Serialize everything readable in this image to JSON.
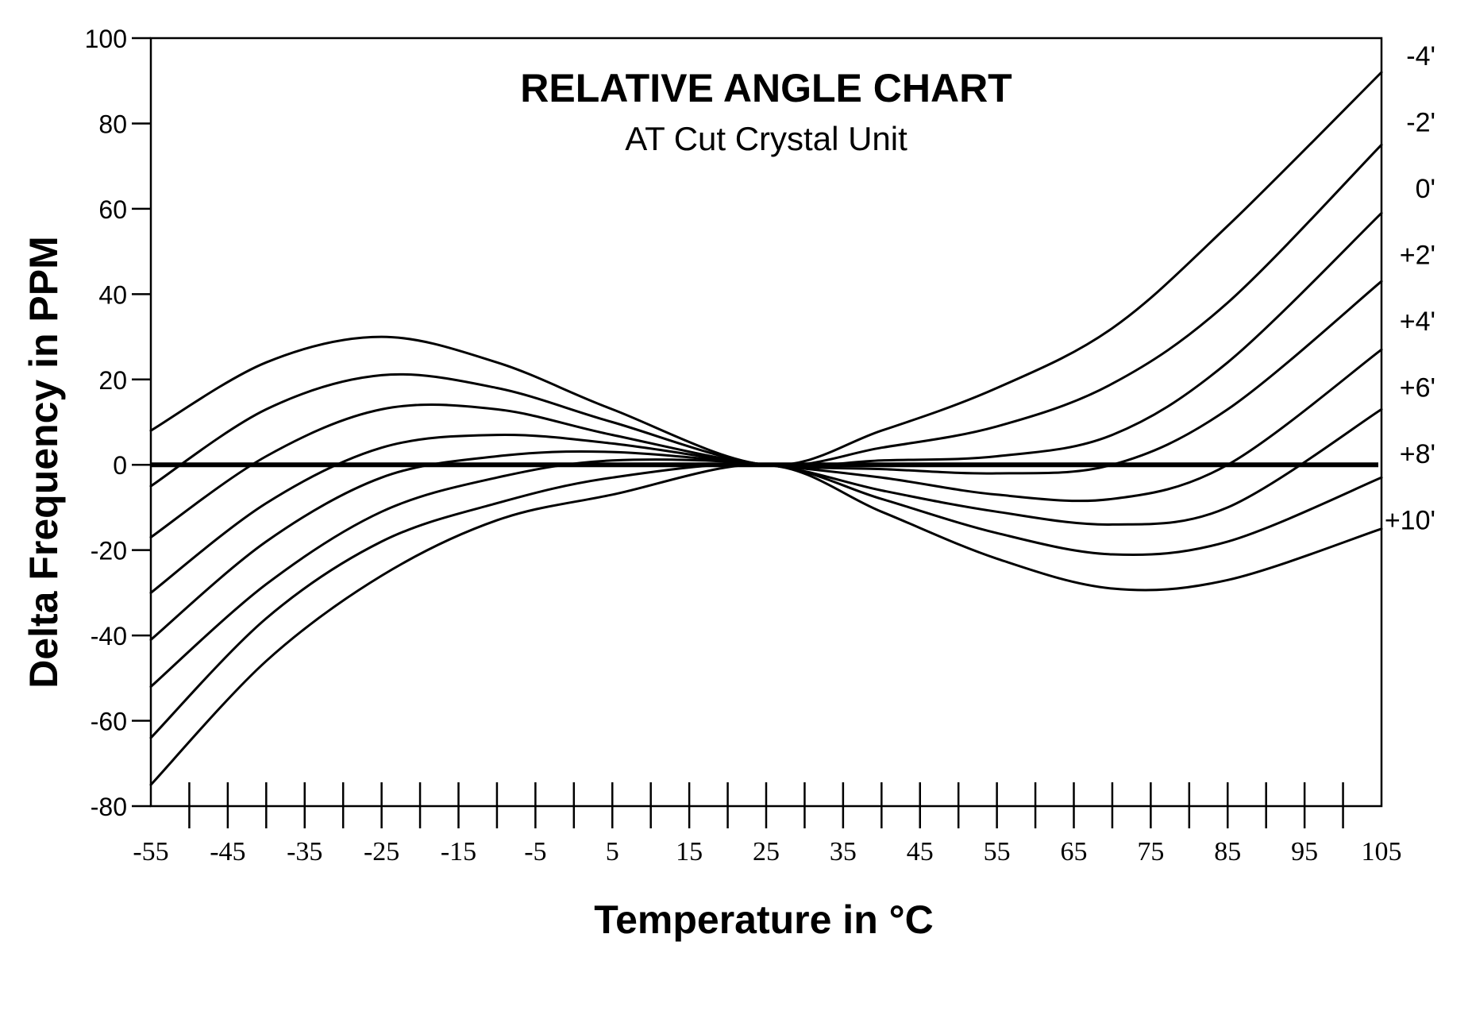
{
  "chart_data": {
    "type": "line",
    "title": "RELATIVE ANGLE CHART",
    "subtitle": "AT Cut Crystal Unit",
    "xlabel": "Temperature in °C",
    "ylabel": "Delta Frequency in PPM",
    "xlim": [
      -55,
      105
    ],
    "ylim": [
      -80,
      100
    ],
    "x_ticks": [
      -55,
      -45,
      -35,
      -25,
      -15,
      -5,
      5,
      15,
      25,
      35,
      45,
      55,
      65,
      75,
      85,
      95,
      105
    ],
    "x_minor_ticks": [
      -50,
      -40,
      -30,
      -20,
      -10,
      0,
      10,
      20,
      30,
      40,
      50,
      60,
      70,
      80,
      90,
      100
    ],
    "y_ticks": [
      100,
      80,
      60,
      40,
      20,
      0,
      -20,
      -40,
      -60,
      -80
    ],
    "grid": false,
    "reference_line": 0,
    "series": [
      {
        "name": "-4'",
        "x": [
          -55,
          -40,
          -25,
          -10,
          5,
          25,
          40,
          55,
          70,
          85,
          105
        ],
        "values": [
          8,
          24,
          30,
          24,
          13,
          0,
          8,
          18,
          32,
          56,
          92
        ]
      },
      {
        "name": "-2'",
        "x": [
          -55,
          -40,
          -25,
          -10,
          5,
          25,
          40,
          55,
          70,
          85,
          105
        ],
        "values": [
          -5,
          13,
          21,
          18,
          10,
          0,
          4,
          9,
          19,
          38,
          75
        ]
      },
      {
        "name": "0'",
        "x": [
          -55,
          -40,
          -25,
          -10,
          5,
          25,
          40,
          55,
          70,
          85,
          105
        ],
        "values": [
          -17,
          2,
          13,
          13,
          7,
          0,
          1,
          2,
          7,
          24,
          59
        ]
      },
      {
        "name": "+2'",
        "x": [
          -55,
          -40,
          -25,
          -10,
          5,
          25,
          40,
          55,
          70,
          85,
          105
        ],
        "values": [
          -30,
          -9,
          4,
          7,
          5,
          0,
          -1,
          -2,
          0,
          13,
          43
        ]
      },
      {
        "name": "+4'",
        "x": [
          -55,
          -40,
          -25,
          -10,
          5,
          25,
          40,
          55,
          70,
          85,
          105
        ],
        "values": [
          -41,
          -18,
          -3,
          2,
          3,
          0,
          -3,
          -7,
          -8,
          0,
          27
        ]
      },
      {
        "name": "+6'",
        "x": [
          -55,
          -40,
          -25,
          -10,
          5,
          25,
          40,
          55,
          70,
          85,
          105
        ],
        "values": [
          -52,
          -28,
          -11,
          -3,
          1,
          0,
          -6,
          -11,
          -14,
          -10,
          13
        ]
      },
      {
        "name": "+8'",
        "x": [
          -55,
          -40,
          -25,
          -10,
          5,
          25,
          40,
          55,
          70,
          85,
          105
        ],
        "values": [
          -64,
          -36,
          -18,
          -9,
          -3,
          0,
          -8,
          -16,
          -21,
          -18,
          -3
        ]
      },
      {
        "name": "+10'",
        "x": [
          -55,
          -40,
          -25,
          -10,
          5,
          25,
          40,
          55,
          70,
          85,
          105
        ],
        "values": [
          -75,
          -46,
          -26,
          -13,
          -7,
          0,
          -11,
          -22,
          -29,
          -27,
          -15
        ]
      }
    ]
  }
}
